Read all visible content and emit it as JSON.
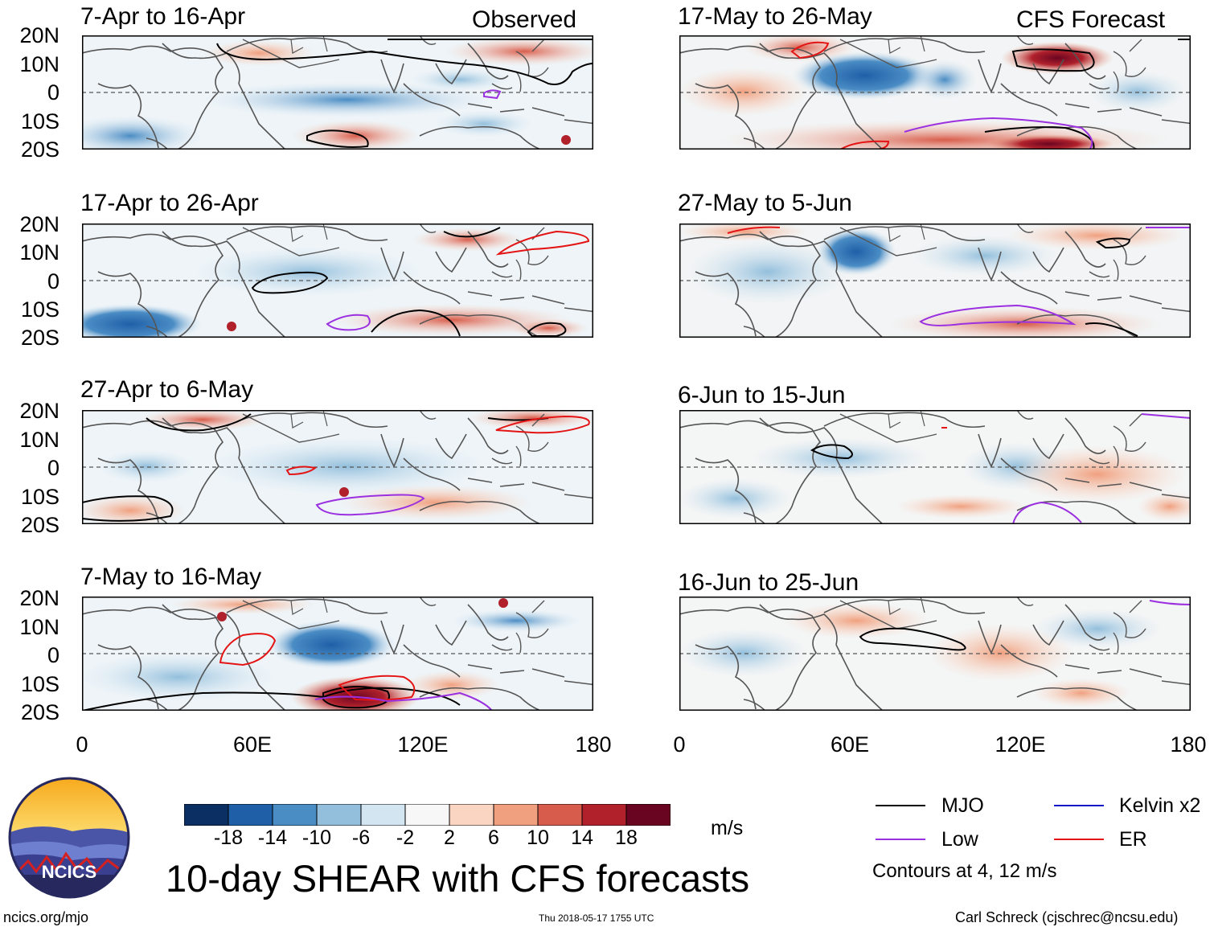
{
  "panels": {
    "observed_label": "Observed",
    "forecast_label": "CFS Forecast",
    "left": [
      {
        "title": "7-Apr to 16-Apr"
      },
      {
        "title": "17-Apr to 26-Apr"
      },
      {
        "title": "27-Apr to 6-May"
      },
      {
        "title": "7-May to 16-May"
      }
    ],
    "right": [
      {
        "title": "17-May to 26-May"
      },
      {
        "title": "27-May to 5-Jun"
      },
      {
        "title": "6-Jun to 15-Jun"
      },
      {
        "title": "16-Jun to 25-Jun"
      }
    ]
  },
  "axes": {
    "lat_labels": [
      "20N",
      "10N",
      "0",
      "10S",
      "20S"
    ],
    "lon_labels": [
      "0",
      "60E",
      "120E",
      "180"
    ]
  },
  "colorbar": {
    "labels": [
      "-18",
      "-14",
      "-10",
      "-6",
      "-2",
      "2",
      "6",
      "10",
      "14",
      "18"
    ],
    "colors": [
      "#0b2f63",
      "#1f5fa8",
      "#4a8cc4",
      "#93bfdc",
      "#d2e5f1",
      "#f6f7f6",
      "#fad5c2",
      "#f0a07f",
      "#d85c4b",
      "#b0212c",
      "#6a0521"
    ],
    "units": "m/s"
  },
  "title": "10-day SHEAR with CFS forecasts",
  "legend": {
    "mjo": {
      "label": "MJO",
      "color": "#000000"
    },
    "kelvin": {
      "label": "Kelvin x2",
      "color": "#1414c8"
    },
    "low": {
      "label": "Low",
      "color": "#9b30e0"
    },
    "er": {
      "label": "ER",
      "color": "#e41414"
    },
    "note": "Contours at 4, 12 m/s"
  },
  "logo": {
    "text": "NCICS"
  },
  "footer": {
    "url": "ncics.org/mjo",
    "timestamp": "Thu 2018-05-17 1755 UTC",
    "credit": "Carl Schreck (cjschrec@ncsu.edu)"
  }
}
